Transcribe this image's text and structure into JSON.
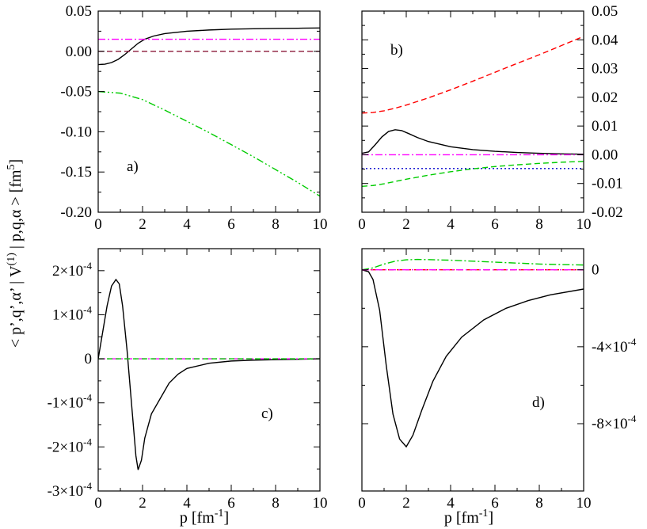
{
  "figure": {
    "ylabel": "< p’,q’,α’ | V(1) | p,q,α > [fm5]",
    "ylabel_parts": {
      "main": "< p’,q’,α’ | V",
      "sup1": "(1)",
      "mid": " | p,q,α > [fm",
      "sup2": "5",
      "end": "]"
    },
    "xlabel": "p [fm-1]",
    "xlabel_parts": {
      "main": "p [fm",
      "sup": "-1",
      "end": "]"
    }
  },
  "chart_data": [
    {
      "type": "line",
      "panel": "a)",
      "xlabel": "p [fm-1]",
      "xlim": [
        0,
        10
      ],
      "ylim": [
        -0.2,
        0.05
      ],
      "xticks": [
        "0",
        "2",
        "4",
        "6",
        "8",
        "10"
      ],
      "yticks": [
        "0.05",
        "0.00",
        "-0.05",
        "-0.10",
        "-0.15",
        "-0.20"
      ],
      "yaxis_side": "left",
      "series": [
        {
          "name": "solid",
          "color": "#000000",
          "style": "solid",
          "x": [
            0,
            0.3,
            0.6,
            0.9,
            1.2,
            1.5,
            1.8,
            2.1,
            2.5,
            3,
            4,
            5,
            6,
            7,
            8,
            9,
            10
          ],
          "y": [
            -0.0165,
            -0.016,
            -0.014,
            -0.01,
            -0.004,
            0.003,
            0.01,
            0.015,
            0.019,
            0.022,
            0.025,
            0.0265,
            0.0275,
            0.028,
            0.0284,
            0.0287,
            0.029
          ]
        },
        {
          "name": "magenta dash-dot",
          "color": "#ff00ff",
          "style": "dashdot",
          "x": [
            0,
            10
          ],
          "y": [
            0.015,
            0.015
          ]
        },
        {
          "name": "dark red dashed",
          "color": "#8b1a3a",
          "style": "dashed",
          "x": [
            0,
            10
          ],
          "y": [
            0.0,
            0.0
          ]
        },
        {
          "name": "green dash-dot-dot",
          "color": "#00cc00",
          "style": "dashdotdot",
          "x": [
            0,
            1,
            2,
            3,
            4,
            5,
            6,
            7,
            8,
            9,
            10
          ],
          "y": [
            -0.05,
            -0.052,
            -0.06,
            -0.073,
            -0.087,
            -0.101,
            -0.116,
            -0.131,
            -0.147,
            -0.163,
            -0.18
          ]
        }
      ]
    },
    {
      "type": "line",
      "panel": "b)",
      "xlabel": "p [fm-1]",
      "xlim": [
        0,
        10
      ],
      "ylim": [
        -0.02,
        0.05
      ],
      "xticks": [
        "0",
        "2",
        "4",
        "6",
        "8",
        "10"
      ],
      "yticks": [
        "0.05",
        "0.04",
        "0.03",
        "0.02",
        "0.01",
        "0.00",
        "-0.01",
        "-0.02"
      ],
      "yaxis_side": "right",
      "series": [
        {
          "name": "red dashed",
          "color": "#ff0000",
          "style": "dashed",
          "x": [
            0,
            0.5,
            1,
            1.5,
            2,
            3,
            4,
            5,
            6,
            7,
            8,
            9,
            10
          ],
          "y": [
            0.0145,
            0.0147,
            0.0153,
            0.0162,
            0.0173,
            0.0198,
            0.0226,
            0.0256,
            0.0287,
            0.0318,
            0.0348,
            0.038,
            0.0412
          ]
        },
        {
          "name": "solid",
          "color": "#000000",
          "style": "solid",
          "x": [
            0,
            0.3,
            0.6,
            0.9,
            1.2,
            1.5,
            1.8,
            2.1,
            2.5,
            3,
            4,
            5,
            6,
            7,
            8,
            9,
            10
          ],
          "y": [
            0.0005,
            0.001,
            0.0035,
            0.0062,
            0.0081,
            0.0087,
            0.0084,
            0.0074,
            0.006,
            0.0046,
            0.0028,
            0.0018,
            0.0012,
            0.0008,
            0.0005,
            0.0003,
            0.0002
          ]
        },
        {
          "name": "magenta dash-dot",
          "color": "#ff00ff",
          "style": "dashdot",
          "x": [
            0,
            10
          ],
          "y": [
            0.0,
            0.0
          ]
        },
        {
          "name": "blue dotted",
          "color": "#0000cc",
          "style": "dotted",
          "x": [
            0,
            10
          ],
          "y": [
            -0.0048,
            -0.0048
          ]
        },
        {
          "name": "green dashed",
          "color": "#00cc00",
          "style": "dashed",
          "x": [
            0,
            0.5,
            1,
            2,
            3,
            4,
            5,
            6,
            7,
            8,
            9,
            10
          ],
          "y": [
            -0.011,
            -0.0107,
            -0.0101,
            -0.0085,
            -0.0071,
            -0.0059,
            -0.0049,
            -0.0041,
            -0.0035,
            -0.003,
            -0.0026,
            -0.0023
          ]
        }
      ]
    },
    {
      "type": "line",
      "panel": "c)",
      "xlabel": "p [fm-1]",
      "xlim": [
        0,
        10
      ],
      "ylim": [
        -0.0003,
        0.00025
      ],
      "xticks": [
        "0",
        "2",
        "4",
        "6",
        "8",
        "10"
      ],
      "yticks": [
        {
          "value": 0.0002,
          "mant": "2×10",
          "exp": "-4"
        },
        {
          "value": 0.0001,
          "mant": "1×10",
          "exp": "-4"
        },
        {
          "value": 0,
          "mant": "0",
          "exp": ""
        },
        {
          "value": -0.0001,
          "mant": "-1×10",
          "exp": "-4"
        },
        {
          "value": -0.0002,
          "mant": "-2×10",
          "exp": "-4"
        },
        {
          "value": -0.0003,
          "mant": "-3×10",
          "exp": "-4"
        }
      ],
      "yaxis_side": "left",
      "series": [
        {
          "name": "solid",
          "color": "#000000",
          "style": "solid",
          "x": [
            0,
            0.2,
            0.4,
            0.6,
            0.8,
            0.95,
            1.1,
            1.3,
            1.5,
            1.7,
            1.8,
            1.95,
            2.1,
            2.4,
            2.8,
            3.2,
            3.6,
            4,
            5,
            6,
            7,
            8,
            10
          ],
          "y": [
            0,
            6e-05,
            0.00012,
            0.000165,
            0.00018,
            0.00017,
            0.00012,
            2e-05,
            -0.0001,
            -0.00022,
            -0.000252,
            -0.00023,
            -0.00018,
            -0.000125,
            -9e-05,
            -5.5e-05,
            -3.5e-05,
            -2.2e-05,
            -1e-05,
            -5e-06,
            -3e-06,
            -2e-06,
            0
          ]
        },
        {
          "name": "magenta dash-dot",
          "color": "#ff00ff",
          "style": "dashdot",
          "x": [
            0,
            10
          ],
          "y": [
            0,
            0
          ]
        },
        {
          "name": "green dashed",
          "color": "#00cc00",
          "style": "dashed",
          "x": [
            0,
            10
          ],
          "y": [
            0,
            0
          ]
        }
      ]
    },
    {
      "type": "line",
      "panel": "d)",
      "xlabel": "p [fm-1]",
      "xlim": [
        0,
        10
      ],
      "ylim": [
        -0.00115,
        0.00011
      ],
      "xticks": [
        "0",
        "2",
        "4",
        "6",
        "8",
        "10"
      ],
      "yticks": [
        {
          "value": 0,
          "mant": "0",
          "exp": ""
        },
        {
          "value": -0.0004,
          "mant": "-4×10",
          "exp": "-4"
        },
        {
          "value": -0.0008,
          "mant": "-8×10",
          "exp": "-4"
        }
      ],
      "yaxis_side": "right",
      "series": [
        {
          "name": "solid",
          "color": "#000000",
          "style": "solid",
          "x": [
            0,
            0.3,
            0.5,
            0.8,
            1.1,
            1.4,
            1.7,
            2,
            2.3,
            2.7,
            3.2,
            3.8,
            4.5,
            5.5,
            6.5,
            7.5,
            8.5,
            10
          ],
          "y": [
            0,
            -1e-05,
            -5e-05,
            -0.00021,
            -0.0005,
            -0.00075,
            -0.00088,
            -0.00092,
            -0.00086,
            -0.00073,
            -0.00058,
            -0.00045,
            -0.00035,
            -0.00026,
            -0.0002,
            -0.00016,
            -0.00013,
            -0.0001
          ]
        },
        {
          "name": "green dash-dot",
          "color": "#00cc00",
          "style": "dashdot",
          "x": [
            0,
            0.5,
            1,
            1.5,
            2,
            2.5,
            3,
            4,
            5,
            6,
            7,
            8,
            9,
            10
          ],
          "y": [
            0,
            1e-05,
            3e-05,
            4.5e-05,
            5.2e-05,
            5.4e-05,
            5.3e-05,
            5e-05,
            4.5e-05,
            4e-05,
            3.5e-05,
            3e-05,
            2.7e-05,
            2.5e-05
          ]
        },
        {
          "name": "red dashed",
          "color": "#ff0000",
          "style": "dashed",
          "x": [
            0,
            10
          ],
          "y": [
            0,
            0
          ]
        },
        {
          "name": "magenta dash-dot",
          "color": "#ff00ff",
          "style": "dashdot",
          "x": [
            0,
            10
          ],
          "y": [
            0,
            0
          ]
        }
      ]
    }
  ]
}
